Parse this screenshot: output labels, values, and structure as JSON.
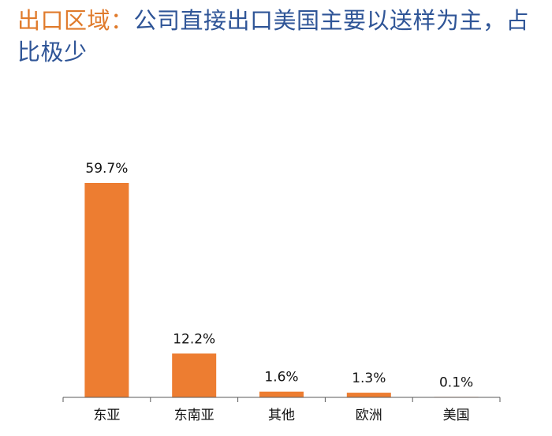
{
  "header": {
    "title_prefix": "出口区域：",
    "title_main": "公司直接出口美国主要以送样为主，占比极少"
  },
  "colors": {
    "bar": "#ed7d31",
    "axis": "#595959",
    "title_prefix": "#e07b2c",
    "title_main": "#2f5597"
  },
  "chart_data": {
    "type": "bar",
    "title": "",
    "xlabel": "",
    "ylabel": "",
    "unit": "%",
    "categories": [
      "东亚",
      "东南亚",
      "其他",
      "欧洲",
      "美国"
    ],
    "values": [
      59.7,
      12.2,
      1.6,
      1.3,
      0.1
    ],
    "data_labels": [
      "59.7%",
      "12.2%",
      "1.6%",
      "1.3%",
      "0.1%"
    ],
    "ylim": [
      0,
      60
    ],
    "grid": false,
    "legend": "none"
  }
}
